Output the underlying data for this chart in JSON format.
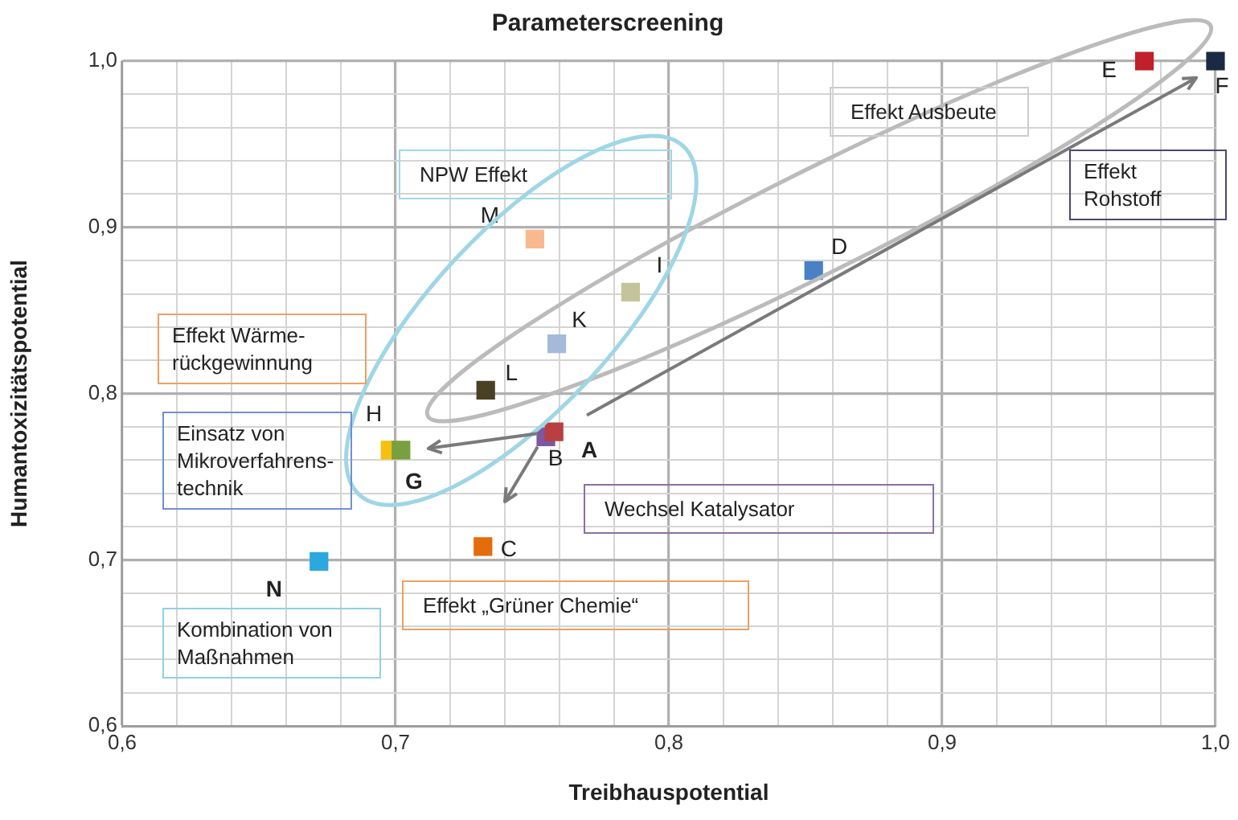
{
  "chart_data": {
    "type": "scatter",
    "title": "Parameterscreening",
    "xlabel": "Treibhauspotential",
    "ylabel": "Humantoxizitätspotential",
    "xlim": [
      0.6,
      1.0
    ],
    "ylim": [
      0.6,
      1.0
    ],
    "xticks": [
      {
        "value": 0.6,
        "label": "0,6"
      },
      {
        "value": 0.62,
        "label": null
      },
      {
        "value": 0.64,
        "label": null
      },
      {
        "value": 0.66,
        "label": null
      },
      {
        "value": 0.68,
        "label": null
      },
      {
        "value": 0.7,
        "label": "0,7"
      },
      {
        "value": 0.72,
        "label": null
      },
      {
        "value": 0.74,
        "label": null
      },
      {
        "value": 0.76,
        "label": null
      },
      {
        "value": 0.78,
        "label": null
      },
      {
        "value": 0.8,
        "label": "0,8"
      },
      {
        "value": 0.82,
        "label": null
      },
      {
        "value": 0.84,
        "label": null
      },
      {
        "value": 0.86,
        "label": null
      },
      {
        "value": 0.88,
        "label": null
      },
      {
        "value": 0.9,
        "label": "0,9"
      },
      {
        "value": 0.92,
        "label": null
      },
      {
        "value": 0.94,
        "label": null
      },
      {
        "value": 0.96,
        "label": null
      },
      {
        "value": 0.98,
        "label": null
      },
      {
        "value": 1.0,
        "label": "1,0"
      }
    ],
    "yticks": [
      {
        "value": 0.6,
        "label": "0,6"
      },
      {
        "value": 0.62,
        "label": null
      },
      {
        "value": 0.64,
        "label": null
      },
      {
        "value": 0.66,
        "label": null
      },
      {
        "value": 0.68,
        "label": null
      },
      {
        "value": 0.7,
        "label": "0,7"
      },
      {
        "value": 0.72,
        "label": null
      },
      {
        "value": 0.74,
        "label": null
      },
      {
        "value": 0.76,
        "label": null
      },
      {
        "value": 0.78,
        "label": null
      },
      {
        "value": 0.8,
        "label": "0,8"
      },
      {
        "value": 0.82,
        "label": null
      },
      {
        "value": 0.84,
        "label": null
      },
      {
        "value": 0.86,
        "label": null
      },
      {
        "value": 0.88,
        "label": null
      },
      {
        "value": 0.9,
        "label": "0,9"
      },
      {
        "value": 0.92,
        "label": null
      },
      {
        "value": 0.94,
        "label": null
      },
      {
        "value": 0.96,
        "label": null
      },
      {
        "value": 0.98,
        "label": null
      },
      {
        "value": 1.0,
        "label": "1,0"
      }
    ],
    "grid": true,
    "legend": false,
    "marker": "square",
    "series": [
      {
        "name": "E",
        "color": "#c0202a",
        "x": [
          0.974
        ],
        "values": [
          1.0
        ]
      },
      {
        "name": "F",
        "color": "#1a2a44",
        "x": [
          1.0
        ],
        "values": [
          1.0
        ]
      },
      {
        "name": "D",
        "color": "#4a80c4",
        "x": [
          0.853
        ],
        "values": [
          0.874
        ]
      },
      {
        "name": "M",
        "color": "#f9b98f",
        "x": [
          0.751
        ],
        "values": [
          0.893
        ]
      },
      {
        "name": "I",
        "color": "#c4c49a",
        "x": [
          0.786
        ],
        "values": [
          0.861
        ]
      },
      {
        "name": "K",
        "color": "#a5b9da",
        "x": [
          0.759
        ],
        "values": [
          0.83
        ]
      },
      {
        "name": "L",
        "color": "#4a4124",
        "x": [
          0.733
        ],
        "values": [
          0.802
        ]
      },
      {
        "name": "A",
        "color": "#b84040",
        "x": [
          0.758
        ],
        "values": [
          0.777
        ]
      },
      {
        "name": "B",
        "color": "#7a59a0",
        "x": [
          0.755
        ],
        "values": [
          0.774
        ]
      },
      {
        "name": "G",
        "color": "#77a040",
        "x": [
          0.702
        ],
        "values": [
          0.766
        ]
      },
      {
        "name": "H",
        "color": "#f5c010",
        "x": [
          0.698
        ],
        "values": [
          0.766
        ]
      },
      {
        "name": "C",
        "color": "#e46c0a",
        "x": [
          0.732
        ],
        "values": [
          0.708
        ]
      },
      {
        "name": "N",
        "color": "#2aa8e0",
        "x": [
          0.672
        ],
        "values": [
          0.699
        ]
      }
    ],
    "annotations": [
      "NPW Effekt",
      "Effekt Ausbeute",
      "Effekt Rohstoff",
      "Effekt Wärme-rückgewinnung",
      "Einsatz von Mikroverfahrens-technik",
      "Wechsel Katalysator",
      "Effekt „Grüner Chemie“",
      "Kombination von Maßnahmen"
    ]
  }
}
